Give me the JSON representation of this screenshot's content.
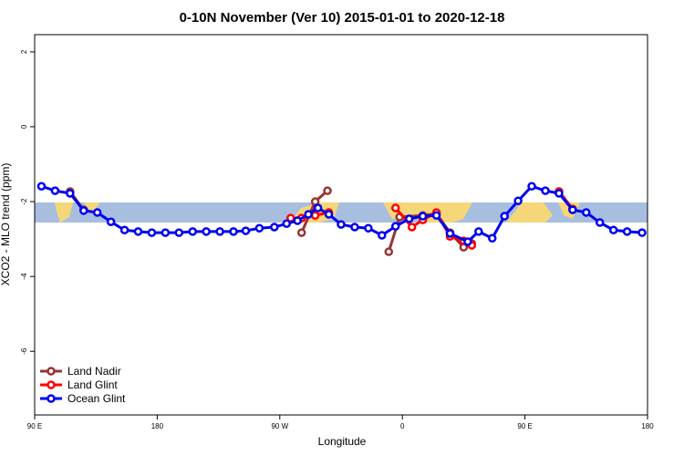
{
  "chart_data": {
    "type": "line",
    "title": "0-10N November (Ver 10)   2015-01-01 to 2020-12-18",
    "x_label": "Longitude",
    "y_label": "XCO2 - MLO trend (ppm)",
    "xlim": [
      90,
      540
    ],
    "ylim": [
      -7.7,
      2.46
    ],
    "xticks": [
      {
        "value": 90,
        "label": "90 E"
      },
      {
        "value": 180,
        "label": "180"
      },
      {
        "value": 270,
        "label": "90 W"
      },
      {
        "value": 360,
        "label": "0"
      },
      {
        "value": 450,
        "label": "90 E"
      },
      {
        "value": 540,
        "label": "180"
      }
    ],
    "yticks": [
      2,
      0,
      -2,
      -4,
      -6
    ],
    "legend": "bottom-left",
    "series": [
      {
        "name": "Land Nadir",
        "color": "#993333",
        "x": [
          116,
          126,
          276,
          286,
          296,
          305,
          314,
          350,
          358,
          375,
          385,
          395,
          405,
          411,
          460,
          475,
          485
        ],
        "values": [
          -1.73,
          -2.22,
          null,
          -2.83,
          -2.0,
          -1.71,
          null,
          -3.34,
          -2.41,
          -2.37,
          -2.32,
          -2.83,
          -3.22,
          -3.12,
          null,
          -1.73,
          -2.2
        ]
      },
      {
        "name": "Land Glint",
        "color": "#ff0000",
        "x": [
          278,
          286,
          296,
          306,
          320,
          355,
          367,
          375,
          385,
          395,
          405,
          411,
          460,
          475,
          485
        ],
        "values": [
          -2.44,
          -2.44,
          -2.37,
          -2.29,
          null,
          -2.17,
          -2.68,
          -2.49,
          -2.29,
          -2.93,
          -3.05,
          -3.17,
          null,
          -1.73,
          -2.2
        ]
      },
      {
        "name": "Ocean Glint",
        "color": "#0000ee",
        "x": [
          95,
          105,
          116,
          126,
          136,
          146,
          156,
          166,
          176,
          186,
          196,
          206,
          216,
          226,
          236,
          245,
          255,
          266,
          275,
          283,
          291,
          298,
          306,
          315,
          325,
          335,
          345,
          355,
          365,
          375,
          385,
          395,
          408,
          416,
          426,
          435,
          445,
          455,
          465,
          475,
          485,
          495,
          505,
          515,
          525,
          536
        ],
        "values": [
          -1.59,
          -1.71,
          -1.78,
          -2.24,
          -2.29,
          -2.54,
          -2.76,
          -2.8,
          -2.83,
          -2.83,
          -2.83,
          -2.8,
          -2.8,
          -2.8,
          -2.8,
          -2.78,
          -2.71,
          -2.68,
          -2.59,
          -2.51,
          -2.34,
          -2.17,
          -2.34,
          -2.61,
          -2.68,
          -2.71,
          -2.9,
          -2.66,
          -2.46,
          -2.39,
          -2.37,
          -2.85,
          -3.07,
          -2.8,
          -2.98,
          -2.39,
          -1.98,
          -1.59,
          -1.71,
          -1.78,
          -2.22,
          -2.29,
          -2.56,
          -2.76,
          -2.8,
          -2.83
        ]
      }
    ]
  }
}
